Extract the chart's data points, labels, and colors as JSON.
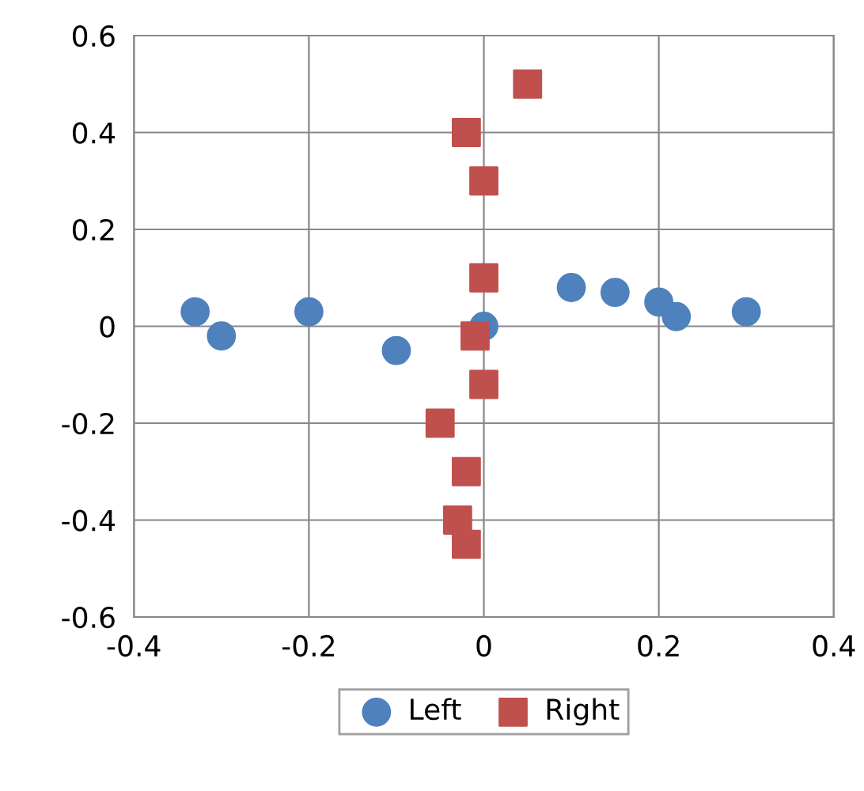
{
  "chart_data": {
    "type": "scatter",
    "series": [
      {
        "name": "Left",
        "color": "#4f81bd",
        "marker": "circle",
        "x": [
          -0.33,
          -0.3,
          -0.2,
          -0.1,
          0,
          0.1,
          0.15,
          0.2,
          0.22,
          0.3
        ],
        "values": [
          0.03,
          -0.02,
          0.03,
          -0.05,
          0,
          0.08,
          0.07,
          0.05,
          0.02,
          0.03
        ]
      },
      {
        "name": "Right",
        "color": "#c0504d",
        "marker": "square",
        "x": [
          0.05,
          -0.02,
          0,
          0,
          -0.01,
          0,
          -0.05,
          -0.02,
          -0.03,
          -0.02
        ],
        "values": [
          0.5,
          0.4,
          0.3,
          0.1,
          -0.02,
          -0.12,
          -0.2,
          -0.3,
          -0.4,
          -0.45
        ]
      }
    ],
    "xlim": [
      -0.4,
      0.4
    ],
    "xticks": [
      -0.4,
      -0.2,
      0,
      0.2,
      0.4
    ],
    "ylim": [
      -0.6,
      0.6
    ],
    "yticks": [
      -0.6,
      -0.4,
      -0.2,
      0,
      0.2,
      0.4,
      0.6
    ],
    "grid": true,
    "legend": "bottom"
  }
}
